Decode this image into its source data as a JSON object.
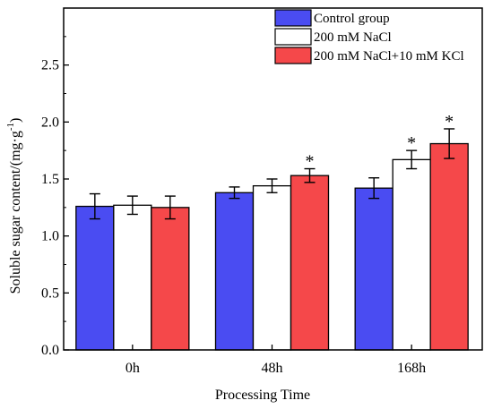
{
  "chart_data": {
    "type": "bar",
    "categories": [
      "0h",
      "48h",
      "168h"
    ],
    "xlabel": "Processing Time",
    "ylabel_main": "Soluble sugar content/(mg·g",
    "ylabel_sup": "-1",
    "ylabel_close": ")",
    "ylim": [
      0,
      3.0
    ],
    "yticks": [
      "0.0",
      "0.5",
      "1.0",
      "1.5",
      "2.0",
      "2.5"
    ],
    "yticks_values": [
      0,
      0.5,
      1.0,
      1.5,
      2.0,
      2.5
    ],
    "legend_placement": "top-right",
    "series": [
      {
        "name": "Control group",
        "color": "#4a4cf2",
        "values": [
          1.26,
          1.38,
          1.42
        ],
        "errors": [
          0.11,
          0.05,
          0.09
        ],
        "significance": [
          "",
          "",
          ""
        ]
      },
      {
        "name": "200 mM NaCl",
        "color": "#ffffff",
        "values": [
          1.27,
          1.44,
          1.67
        ],
        "errors": [
          0.08,
          0.06,
          0.08
        ],
        "significance": [
          "",
          "",
          "*"
        ]
      },
      {
        "name": "200 mM NaCl+10 mM KCl",
        "color": "#f5484a",
        "values": [
          1.25,
          1.53,
          1.81
        ],
        "errors": [
          0.1,
          0.06,
          0.13
        ],
        "significance": [
          "",
          "*",
          "*"
        ]
      }
    ]
  }
}
